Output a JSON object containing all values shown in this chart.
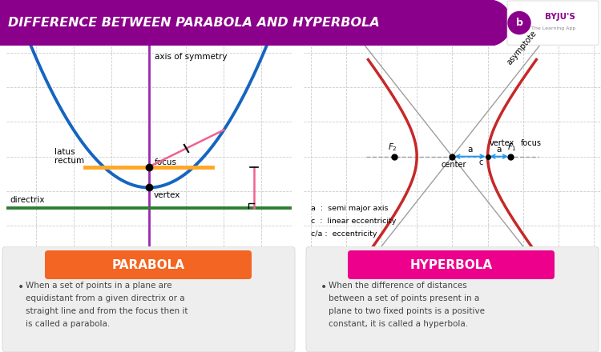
{
  "title": "DIFFERENCE BETWEEN PARABOLA AND HYPERBOLA",
  "header_bg": "#8B008B",
  "title_color": "#FFFFFF",
  "parabola_label": "PARABOLA",
  "hyperbola_label": "HYPERBOLA",
  "parabola_btn_color": "#F26522",
  "hyperbola_btn_color": "#EC008C",
  "parabola_text_line1": "When a set of points in a plane are",
  "parabola_text_line2": "equidistant from a given directrix or a",
  "parabola_text_line3": "straight line and from the focus then it",
  "parabola_text_line4": "is called a parabola.",
  "hyperbola_text_line1": "When the difference of distances",
  "hyperbola_text_line2": "between a set of points present in a",
  "hyperbola_text_line3": "plane to two fixed points is a positive",
  "hyperbola_text_line4": "constant, it is called a hyperbola.",
  "bg_color": "#FFFFFF",
  "panel_bg": "#EEEEEE",
  "grid_color": "#CCCCCC",
  "parabola_curve_color": "#1565C0",
  "axis_sym_color": "#9C27B0",
  "latus_color": "#FFA726",
  "directrix_color": "#2E7D32",
  "pink_color": "#F06292",
  "hyperbola_curve_color": "#C62828",
  "asymptote_color": "#9E9E9E",
  "dash_color": "#9E9E9E",
  "byjus_purple": "#8B008B",
  "text_color": "#444444"
}
